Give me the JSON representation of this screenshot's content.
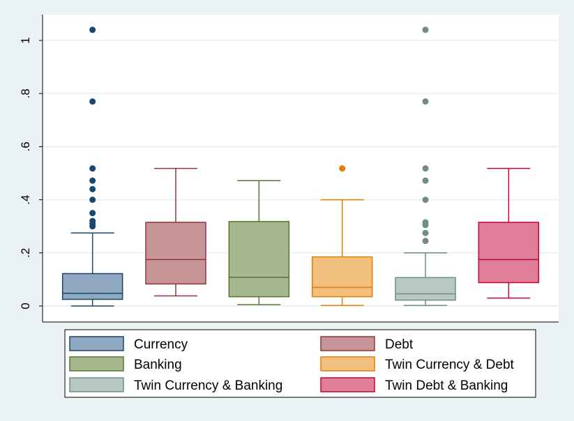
{
  "chart_data": {
    "type": "box",
    "ylim": [
      0,
      1.05
    ],
    "y_ticks": [
      0,
      0.2,
      0.4,
      0.6,
      0.8,
      1.0
    ],
    "y_tick_labels": [
      "0",
      ".2",
      ".4",
      ".6",
      ".8",
      "1"
    ],
    "grid": true,
    "legend_position": "bottom",
    "series": [
      {
        "name": "Currency",
        "q1": 0.025,
        "median": 0.048,
        "q3": 0.122,
        "whisker_low": 0.0,
        "whisker_high": 0.275,
        "outliers": [
          1.04,
          0.77,
          0.518,
          0.472,
          0.44,
          0.4,
          0.35,
          0.32,
          0.31,
          0.3
        ]
      },
      {
        "name": "Debt",
        "q1": 0.083,
        "median": 0.175,
        "q3": 0.315,
        "whisker_low": 0.038,
        "whisker_high": 0.518,
        "outliers": []
      },
      {
        "name": "Banking",
        "q1": 0.035,
        "median": 0.108,
        "q3": 0.318,
        "whisker_low": 0.005,
        "whisker_high": 0.472,
        "outliers": []
      },
      {
        "name": "Twin Currency & Debt",
        "q1": 0.035,
        "median": 0.07,
        "q3": 0.185,
        "whisker_low": 0.002,
        "whisker_high": 0.4,
        "outliers": [
          0.518
        ]
      },
      {
        "name": "Twin Currency & Banking",
        "q1": 0.022,
        "median": 0.046,
        "q3": 0.107,
        "whisker_low": 0.002,
        "whisker_high": 0.2,
        "outliers": [
          1.04,
          0.77,
          0.518,
          0.472,
          0.4,
          0.315,
          0.305,
          0.275,
          0.245
        ]
      },
      {
        "name": "Twin Debt & Banking",
        "q1": 0.088,
        "median": 0.175,
        "q3": 0.315,
        "whisker_low": 0.03,
        "whisker_high": 0.518,
        "outliers": []
      }
    ],
    "colors": [
      {
        "fill": "#90a8c0",
        "stroke": "#1a476f"
      },
      {
        "fill": "#c79598",
        "stroke": "#90353b"
      },
      {
        "fill": "#a6b98e",
        "stroke": "#55752f"
      },
      {
        "fill": "#f2c07e",
        "stroke": "#e37e00"
      },
      {
        "fill": "#b8c8c3",
        "stroke": "#6e8e84"
      },
      {
        "fill": "#e07d98",
        "stroke": "#c10534"
      }
    ]
  }
}
